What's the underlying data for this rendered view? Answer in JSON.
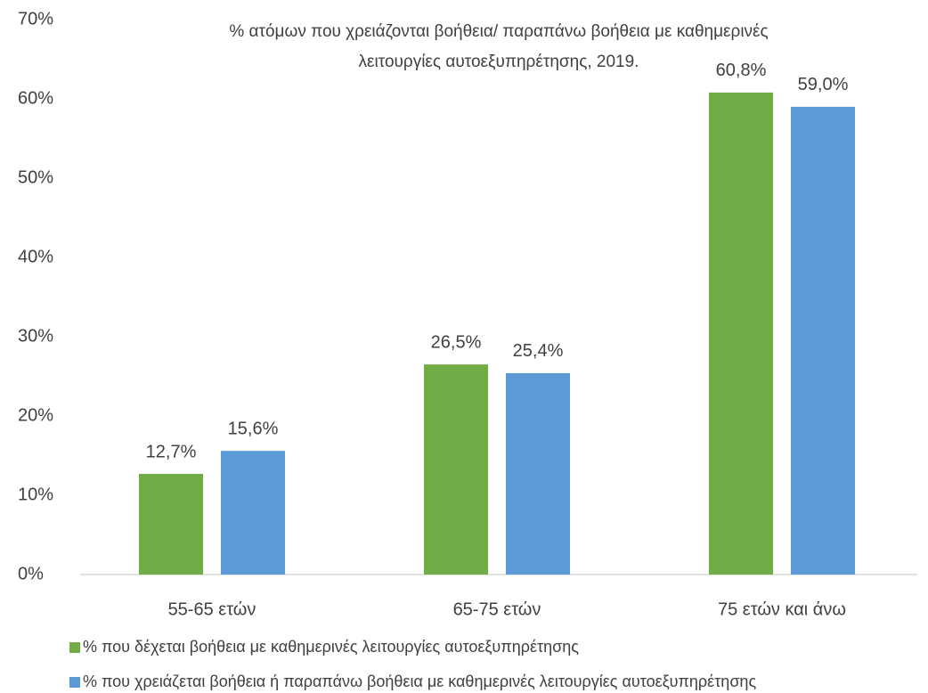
{
  "chart_data": {
    "type": "bar",
    "title": [
      "% ατόμων που χρειάζονται βοήθεια/ παραπάνω βοήθεια με καθημερινές",
      "λειτουργίες αυτοεξυπηρέτησης, 2019."
    ],
    "categories": [
      "55-65 ετών",
      "65-75 ετών",
      "75 ετών και άνω"
    ],
    "series": [
      {
        "name": "% που δέχεται βοήθεια με καθημερινές λειτουργίες αυτοεξυπηρέτησης",
        "color": "#70ad47",
        "values": [
          12.7,
          26.5,
          60.8
        ],
        "value_labels": [
          "12,7%",
          "26,5%",
          "60,8%"
        ]
      },
      {
        "name": "% που χρειάζεται βοήθεια ή παραπάνω βοήθεια με καθημερινές λειτουργίες αυτοεξυπηρέτησης",
        "color": "#5b9bd5",
        "values": [
          15.6,
          25.4,
          59.0
        ],
        "value_labels": [
          "15,6%",
          "25,4%",
          "59,0%"
        ]
      }
    ],
    "ylim": [
      0,
      70
    ],
    "yticks": [
      {
        "value": 0,
        "label": "0%"
      },
      {
        "value": 10,
        "label": "10%"
      },
      {
        "value": 20,
        "label": "20%"
      },
      {
        "value": 30,
        "label": "30%"
      },
      {
        "value": 40,
        "label": "40%"
      },
      {
        "value": 50,
        "label": "50%"
      },
      {
        "value": 60,
        "label": "60%"
      },
      {
        "value": 70,
        "label": "70%"
      }
    ],
    "grid": false,
    "legend": "bottom"
  }
}
